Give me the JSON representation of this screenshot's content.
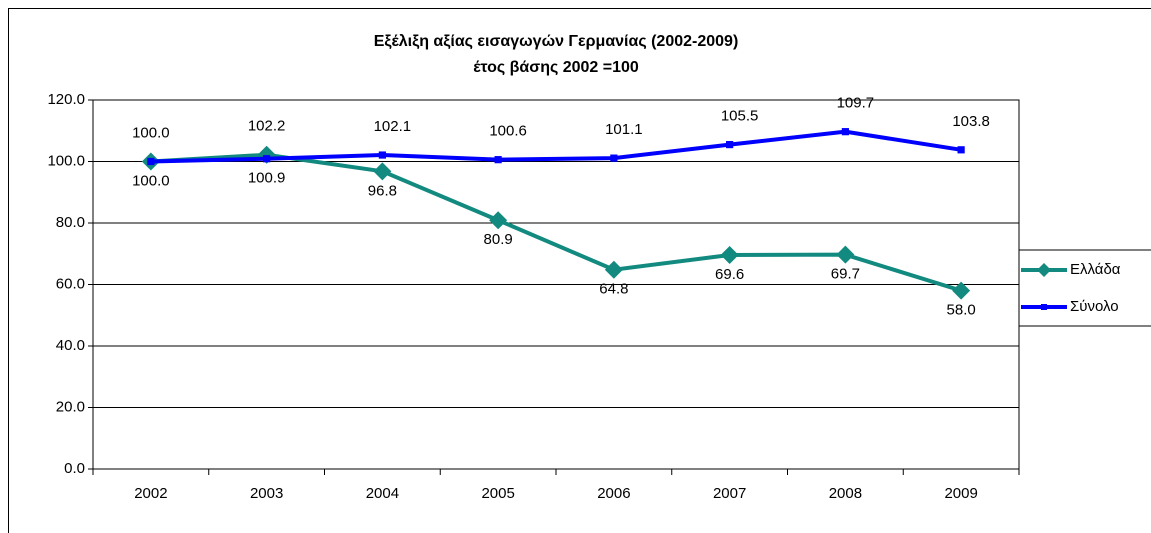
{
  "chart_data": {
    "type": "line",
    "title": "Εξέλιξη αξίας εισαγωγών Γερμανίας (2002-2009)",
    "subtitle": "έτος βάσης 2002 =100",
    "categories": [
      "2002",
      "2003",
      "2004",
      "2005",
      "2006",
      "2007",
      "2008",
      "2009"
    ],
    "series": [
      {
        "name": "Ελλάδα",
        "color": "#138a80",
        "marker": "diamond",
        "values": [
          100.0,
          102.2,
          96.8,
          80.9,
          64.8,
          69.6,
          69.7,
          58.0
        ],
        "value_labels": [
          "100.0",
          "102.2",
          "96.8",
          "80.9",
          "64.8",
          "69.6",
          "69.7",
          "58.0"
        ]
      },
      {
        "name": "Σύνολο",
        "color": "#0000ff",
        "marker": "square",
        "values": [
          100.0,
          100.9,
          102.1,
          100.6,
          101.1,
          105.5,
          109.7,
          103.8
        ],
        "value_labels": [
          "100.0",
          "100.9",
          "102.1",
          "100.6",
          "101.1",
          "105.5",
          "109.7",
          "103.8"
        ]
      }
    ],
    "ylim": [
      0,
      120
    ],
    "yticks": [
      {
        "value": 0,
        "label": "0.0"
      },
      {
        "value": 20,
        "label": "20.0"
      },
      {
        "value": 40,
        "label": "40.0"
      },
      {
        "value": 60,
        "label": "60.0"
      },
      {
        "value": 80,
        "label": "80.0"
      },
      {
        "value": 100,
        "label": "100.0"
      },
      {
        "value": 120,
        "label": "120.0"
      }
    ],
    "grid": true,
    "legend": "right"
  }
}
